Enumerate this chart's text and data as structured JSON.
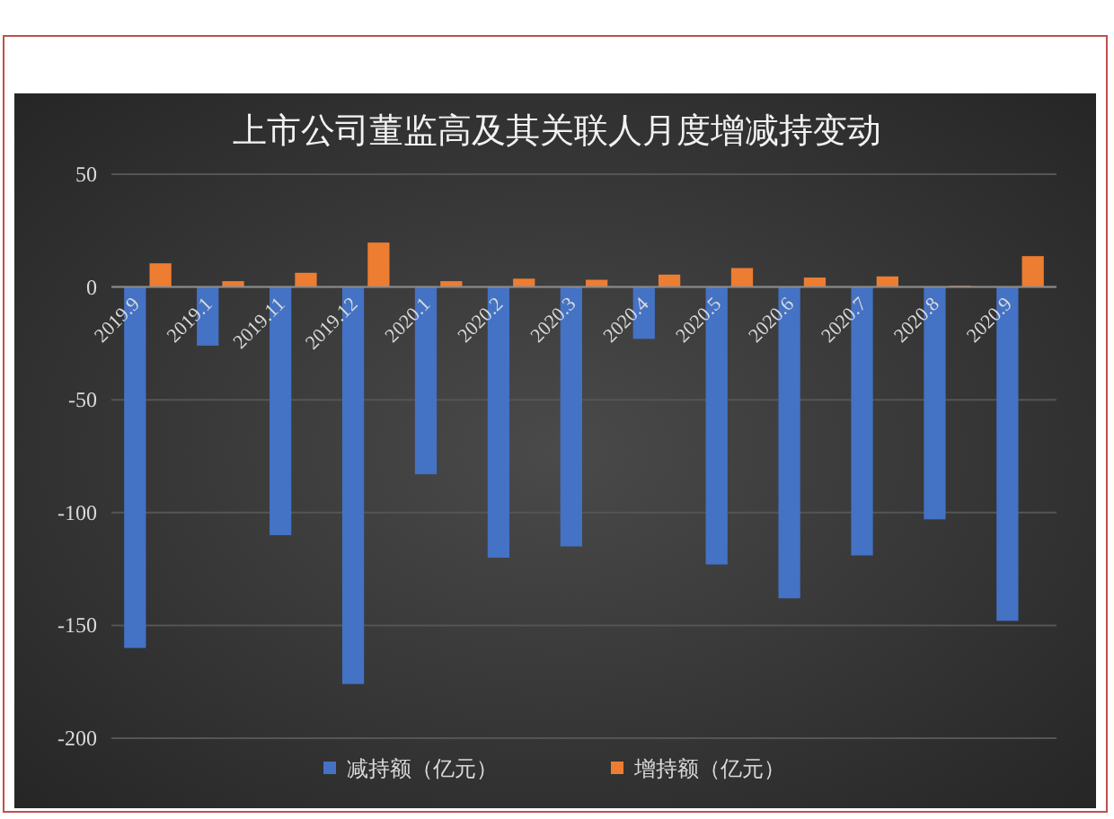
{
  "chart_data": {
    "type": "bar",
    "title": "上市公司董监高及其关联人月度增减持变动",
    "categories": [
      "2019.9",
      "2019.1",
      "2019.11",
      "2019.12",
      "2020.1",
      "2020.2",
      "2020.3",
      "2020.4",
      "2020.5",
      "2020.6",
      "2020.7",
      "2020.8",
      "2020.9"
    ],
    "series": [
      {
        "name": "减持额（亿元）",
        "color": "#4472c4",
        "values": [
          -160,
          -26,
          -110,
          -176,
          -83,
          -120,
          -115,
          -23,
          -123,
          -138,
          -119,
          -103,
          -148
        ]
      },
      {
        "name": "增持额（亿元）",
        "color": "#ed7d31",
        "values": [
          10.5,
          2.6,
          6.3,
          19.7,
          2.6,
          3.7,
          3.2,
          5.5,
          8.4,
          4.2,
          4.7,
          0.5,
          13.7
        ]
      }
    ],
    "ylim": [
      -200,
      50
    ],
    "yticks": [
      50,
      0,
      -50,
      -100,
      -150,
      -200
    ],
    "grid": "y",
    "legend": "bottom"
  }
}
